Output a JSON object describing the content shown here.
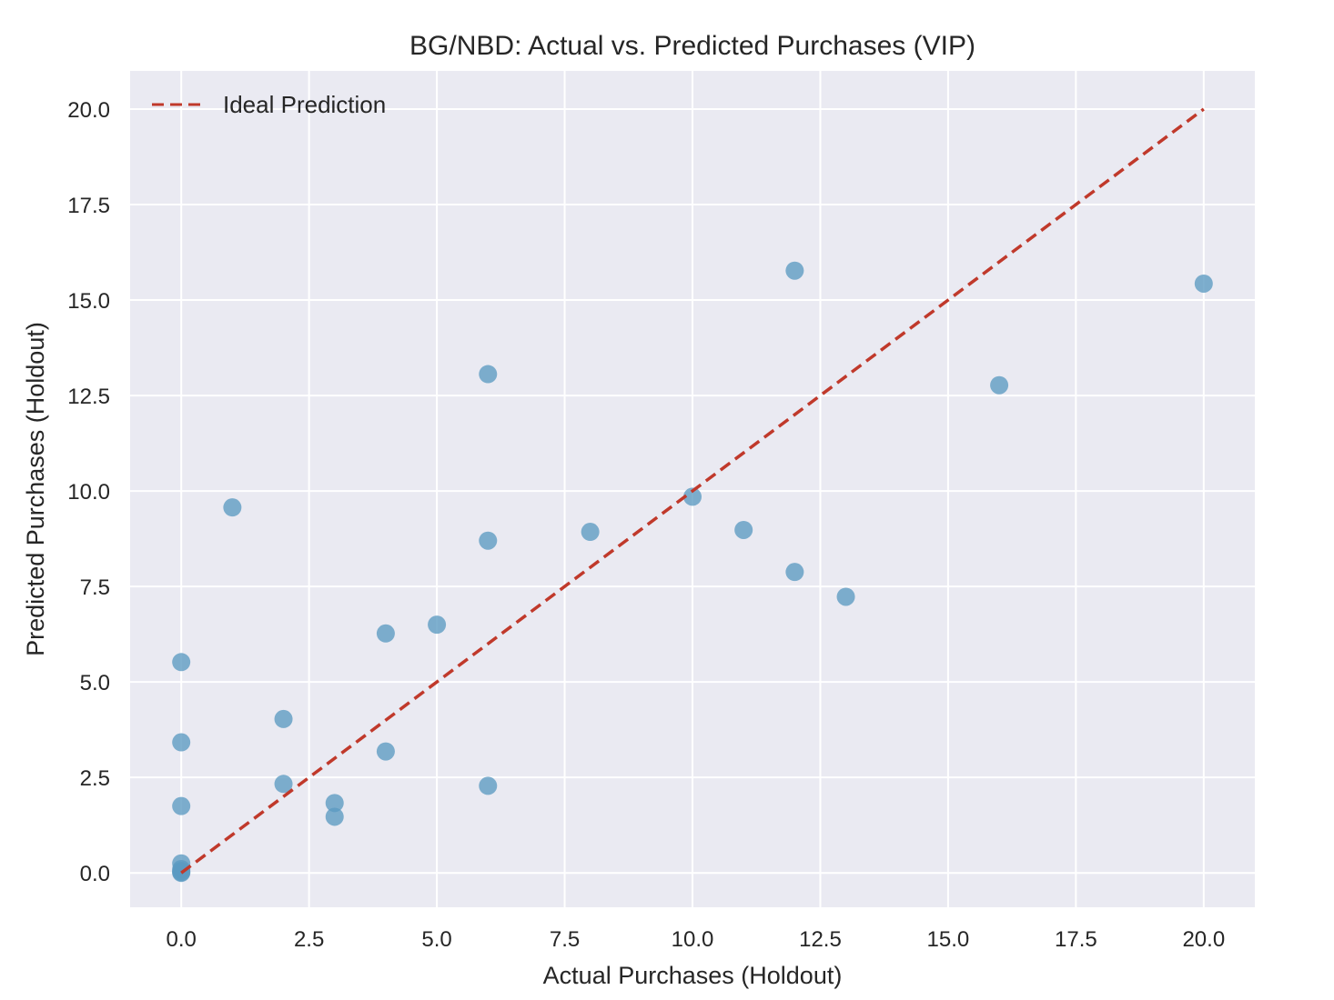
{
  "chart_data": {
    "type": "scatter",
    "title": "BG/NBD: Actual vs. Predicted Purchases (VIP)",
    "xlabel": "Actual Purchases (Holdout)",
    "ylabel": "Predicted Purchases (Holdout)",
    "xlim": [
      -1.0,
      21.0
    ],
    "ylim": [
      -0.9,
      21.0
    ],
    "x_ticks": [
      0.0,
      2.5,
      5.0,
      7.5,
      10.0,
      12.5,
      15.0,
      17.5,
      20.0
    ],
    "x_tick_labels": [
      "0.0",
      "2.5",
      "5.0",
      "7.5",
      "10.0",
      "12.5",
      "15.0",
      "17.5",
      "20.0"
    ],
    "y_ticks": [
      0.0,
      2.5,
      5.0,
      7.5,
      10.0,
      12.5,
      15.0,
      17.5,
      20.0
    ],
    "y_tick_labels": [
      "0.0",
      "2.5",
      "5.0",
      "7.5",
      "10.0",
      "12.5",
      "15.0",
      "17.5",
      "20.0"
    ],
    "grid": true,
    "legend": {
      "placement": "top-left",
      "entries": [
        {
          "label": "Ideal Prediction",
          "style": "dashed-line"
        }
      ]
    },
    "series": [
      {
        "type": "scatter",
        "color": "#5b9ac2",
        "points": [
          {
            "x": 0,
            "y": 0.0
          },
          {
            "x": 0,
            "y": 0.02
          },
          {
            "x": 0,
            "y": 0.05
          },
          {
            "x": 0,
            "y": 0.1
          },
          {
            "x": 0,
            "y": 0.25
          },
          {
            "x": 0,
            "y": 1.75
          },
          {
            "x": 0,
            "y": 3.42
          },
          {
            "x": 0,
            "y": 5.52
          },
          {
            "x": 1,
            "y": 9.57
          },
          {
            "x": 2,
            "y": 4.03
          },
          {
            "x": 2,
            "y": 2.33
          },
          {
            "x": 3,
            "y": 1.83
          },
          {
            "x": 3,
            "y": 1.47
          },
          {
            "x": 4,
            "y": 6.27
          },
          {
            "x": 4,
            "y": 3.18
          },
          {
            "x": 5,
            "y": 6.5
          },
          {
            "x": 6,
            "y": 13.06
          },
          {
            "x": 6,
            "y": 8.7
          },
          {
            "x": 6,
            "y": 2.28
          },
          {
            "x": 8,
            "y": 8.93
          },
          {
            "x": 10,
            "y": 9.85
          },
          {
            "x": 11,
            "y": 8.98
          },
          {
            "x": 12,
            "y": 15.77
          },
          {
            "x": 12,
            "y": 7.88
          },
          {
            "x": 13,
            "y": 7.23
          },
          {
            "x": 16,
            "y": 12.77
          },
          {
            "x": 20,
            "y": 15.43
          }
        ]
      },
      {
        "type": "line",
        "name": "Ideal Prediction",
        "color": "#c0392b",
        "style": "dashed",
        "points": [
          {
            "x": 0,
            "y": 0
          },
          {
            "x": 20,
            "y": 20
          }
        ]
      }
    ]
  }
}
